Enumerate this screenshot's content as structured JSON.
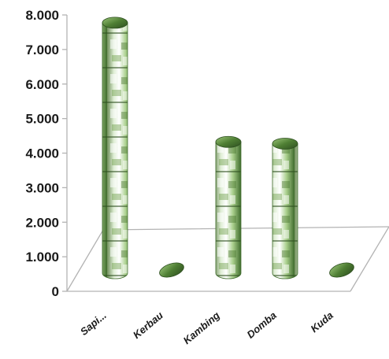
{
  "chart_data": {
    "type": "bar",
    "categories": [
      "Sapi...",
      "Kerbau",
      "Kambing",
      "Domba",
      "Kuda"
    ],
    "values": [
      7250,
      50,
      3800,
      3750,
      0
    ],
    "ylim": [
      0,
      8000
    ],
    "yticks": [
      "0",
      "1.000",
      "2.000",
      "3.000",
      "4.000",
      "5.000",
      "6.000",
      "7.000",
      "8.000"
    ],
    "title": "",
    "xlabel": "",
    "ylabel": "",
    "grid": false,
    "legend": "none",
    "colors": {
      "bar_dark": "#3f6b2c",
      "bar_mid": "#8fbf6a",
      "bar_light": "#e9f3e0",
      "cap": "#5b8a3c",
      "axis": "#b3b3b3"
    }
  }
}
